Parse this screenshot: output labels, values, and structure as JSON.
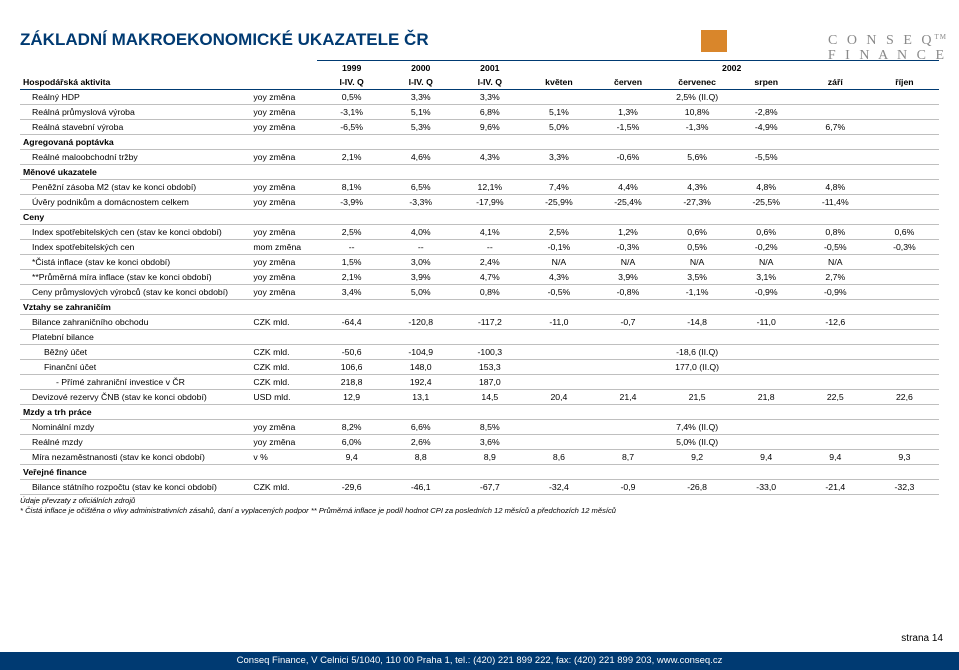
{
  "logo": {
    "line1": "C O N S E Q",
    "line2": "F I N A N C E",
    "tm": "TM"
  },
  "title": "ZÁKLADNÍ MAKROEKONOMICKÉ UKAZATELE ČR",
  "years": [
    "1999",
    "2000",
    "2001",
    "2002"
  ],
  "months_header": [
    "I-IV. Q",
    "I-IV. Q",
    "I-IV. Q",
    "květen",
    "červen",
    "červenec",
    "srpen",
    "září",
    "říjen"
  ],
  "activity_label": "Hospodářská aktivita",
  "rows": [
    {
      "label": "Reálný HDP",
      "indent": 1,
      "unit": "yoy změna",
      "v": [
        "0,5%",
        "3,3%",
        "3,3%",
        "",
        "",
        "2,5% (II.Q)",
        "",
        "",
        ""
      ]
    },
    {
      "label": "Reálná průmyslová výroba",
      "indent": 1,
      "unit": "yoy změna",
      "v": [
        "-3,1%",
        "5,1%",
        "6,8%",
        "5,1%",
        "1,3%",
        "10,8%",
        "-2,8%",
        "",
        ""
      ]
    },
    {
      "label": "Reálná stavební výroba",
      "indent": 1,
      "unit": "yoy změna",
      "v": [
        "-6,5%",
        "5,3%",
        "9,6%",
        "5,0%",
        "-1,5%",
        "-1,3%",
        "-4,9%",
        "6,7%",
        ""
      ]
    },
    {
      "label": "Agregovaná poptávka",
      "section": true
    },
    {
      "label": "Reálné maloobchodní tržby",
      "indent": 1,
      "unit": "yoy změna",
      "v": [
        "2,1%",
        "4,6%",
        "4,3%",
        "3,3%",
        "-0,6%",
        "5,6%",
        "-5,5%",
        "",
        ""
      ]
    },
    {
      "label": "Měnové ukazatele",
      "section": true
    },
    {
      "label": "Peněžní zásoba M2 (stav ke konci období)",
      "indent": 1,
      "unit": "yoy změna",
      "v": [
        "8,1%",
        "6,5%",
        "12,1%",
        "7,4%",
        "4,4%",
        "4,3%",
        "4,8%",
        "4,8%",
        ""
      ]
    },
    {
      "label": "Úvěry podnikům a domácnostem celkem",
      "indent": 1,
      "unit": "yoy změna",
      "v": [
        "-3,9%",
        "-3,3%",
        "-17,9%",
        "-25,9%",
        "-25,4%",
        "-27,3%",
        "-25,5%",
        "-11,4%",
        ""
      ]
    },
    {
      "label": "Ceny",
      "section": true
    },
    {
      "label": "Index spotřebitelských cen (stav ke konci období)",
      "indent": 1,
      "unit": "yoy změna",
      "v": [
        "2,5%",
        "4,0%",
        "4,1%",
        "2,5%",
        "1,2%",
        "0,6%",
        "0,6%",
        "0,8%",
        "0,6%"
      ]
    },
    {
      "label": "Index spotřebitelských cen",
      "indent": 1,
      "unit": "mom změna",
      "v": [
        "--",
        "--",
        "--",
        "-0,1%",
        "-0,3%",
        "0,5%",
        "-0,2%",
        "-0,5%",
        "-0,3%"
      ]
    },
    {
      "label": "*Čistá inflace (stav ke konci období)",
      "indent": 1,
      "unit": "yoy změna",
      "v": [
        "1,5%",
        "3,0%",
        "2,4%",
        "N/A",
        "N/A",
        "N/A",
        "N/A",
        "N/A",
        ""
      ]
    },
    {
      "label": "**Průměrná míra inflace (stav ke konci období)",
      "indent": 1,
      "unit": "yoy změna",
      "v": [
        "2,1%",
        "3,9%",
        "4,7%",
        "4,3%",
        "3,9%",
        "3,5%",
        "3,1%",
        "2,7%",
        ""
      ]
    },
    {
      "label": "Ceny průmyslových výrobců (stav ke konci období)",
      "indent": 1,
      "unit": "yoy změna",
      "v": [
        "3,4%",
        "5,0%",
        "0,8%",
        "-0,5%",
        "-0,8%",
        "-1,1%",
        "-0,9%",
        "-0,9%",
        ""
      ]
    },
    {
      "label": "Vztahy se zahraničím",
      "section": true
    },
    {
      "label": "Bilance zahraničního obchodu",
      "indent": 1,
      "unit": "CZK mld.",
      "v": [
        "-64,4",
        "-120,8",
        "-117,2",
        "-11,0",
        "-0,7",
        "-14,8",
        "-11,0",
        "-12,6",
        ""
      ]
    },
    {
      "label": "Platební bilance",
      "indent": 1,
      "unit": "",
      "v": [
        "",
        "",
        "",
        "",
        "",
        "",
        "",
        "",
        ""
      ]
    },
    {
      "label": "Běžný účet",
      "indent": 2,
      "unit": "CZK mld.",
      "v": [
        "-50,6",
        "-104,9",
        "-100,3",
        "",
        "",
        "-18,6 (II.Q)",
        "",
        "",
        ""
      ]
    },
    {
      "label": "Finanční účet",
      "indent": 2,
      "unit": "CZK mld.",
      "v": [
        "106,6",
        "148,0",
        "153,3",
        "",
        "",
        "177,0 (II.Q)",
        "",
        "",
        ""
      ]
    },
    {
      "label": "- Přímé zahraniční investice v ČR",
      "indent": 3,
      "unit": "CZK mld.",
      "v": [
        "218,8",
        "192,4",
        "187,0",
        "",
        "",
        "",
        "",
        "",
        ""
      ]
    },
    {
      "label": "Devizové rezervy ČNB (stav ke konci období)",
      "indent": 1,
      "unit": "USD mld.",
      "v": [
        "12,9",
        "13,1",
        "14,5",
        "20,4",
        "21,4",
        "21,5",
        "21,8",
        "22,5",
        "22,6"
      ]
    },
    {
      "label": "Mzdy a trh práce",
      "section": true
    },
    {
      "label": "Nominální mzdy",
      "indent": 1,
      "unit": "yoy změna",
      "v": [
        "8,2%",
        "6,6%",
        "8,5%",
        "",
        "",
        "7,4% (II.Q)",
        "",
        "",
        ""
      ]
    },
    {
      "label": "Reálné mzdy",
      "indent": 1,
      "unit": "yoy změna",
      "v": [
        "6,0%",
        "2,6%",
        "3,6%",
        "",
        "",
        "5,0% (II.Q)",
        "",
        "",
        ""
      ]
    },
    {
      "label": "Míra nezaměstnanosti (stav ke konci období)",
      "indent": 1,
      "unit": "v %",
      "v": [
        "9,4",
        "8,8",
        "8,9",
        "8,6",
        "8,7",
        "9,2",
        "9,4",
        "9,4",
        "9,3"
      ]
    },
    {
      "label": "Veřejné finance",
      "section": true
    },
    {
      "label": "Bilance státního rozpočtu (stav ke konci období)",
      "indent": 1,
      "unit": "CZK mld.",
      "v": [
        "-29,6",
        "-46,1",
        "-67,7",
        "-32,4",
        "-0,9",
        "-26,8",
        "-33,0",
        "-21,4",
        "-32,3"
      ]
    }
  ],
  "footnotes": [
    "Údaje převzaty z oficiálních zdrojů",
    "* Čistá inflace je očištěna o vlivy administrativních zásahů, daní a vyplacených podpor    ** Průměrná inflace je podíl hodnot CPI za posledních 12 měsíců a předchozích 12 měsíců"
  ],
  "page_label": "strana 14",
  "footer": "Conseq Finance, V Celnici 5/1040, 110 00 Praha 1, tel.: (420) 221 899 222, fax: (420) 221 899 203, www.conseq.cz",
  "colors": {
    "brand_blue": "#003a72",
    "orange": "#d9862b",
    "grid": "#bfbfbf",
    "logo_grey": "#8a8a8a"
  }
}
